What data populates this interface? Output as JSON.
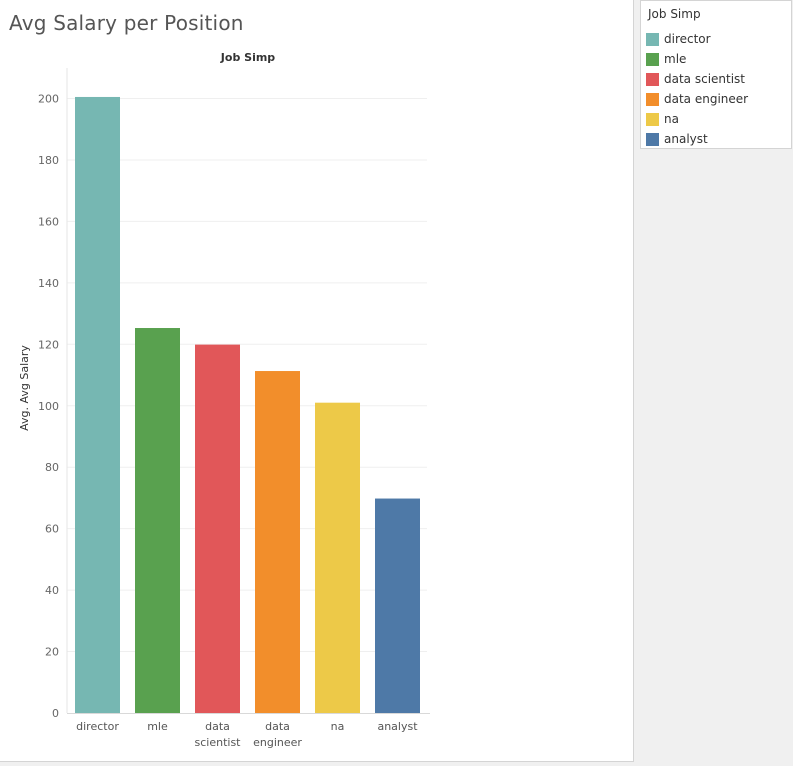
{
  "sheet": {
    "title": "Avg Salary per Position"
  },
  "legend": {
    "title": "Job Simp",
    "items": [
      {
        "label": "director",
        "color": "#76b7b2"
      },
      {
        "label": "mle",
        "color": "#59a14f"
      },
      {
        "label": "data scientist",
        "color": "#e15759"
      },
      {
        "label": "data engineer",
        "color": "#f28e2b"
      },
      {
        "label": "na",
        "color": "#edc948"
      },
      {
        "label": "analyst",
        "color": "#4e79a7"
      }
    ]
  },
  "chart_data": {
    "type": "bar",
    "title": "Job Simp",
    "xlabel": "",
    "ylabel": "Avg. Avg Salary",
    "categories": [
      [
        "director"
      ],
      [
        "mle"
      ],
      [
        "data",
        "scientist"
      ],
      [
        "data",
        "engineer"
      ],
      [
        "na"
      ],
      [
        "analyst"
      ]
    ],
    "values": [
      200.5,
      125.3,
      119.9,
      111.3,
      101.0,
      69.8
    ],
    "colors": [
      "#76b7b2",
      "#59a14f",
      "#e15759",
      "#f28e2b",
      "#edc948",
      "#4e79a7"
    ],
    "ylim": [
      0,
      200
    ],
    "yticks": [
      0,
      20,
      40,
      60,
      80,
      100,
      120,
      140,
      160,
      180,
      200
    ],
    "grid": true,
    "legend": "right"
  }
}
